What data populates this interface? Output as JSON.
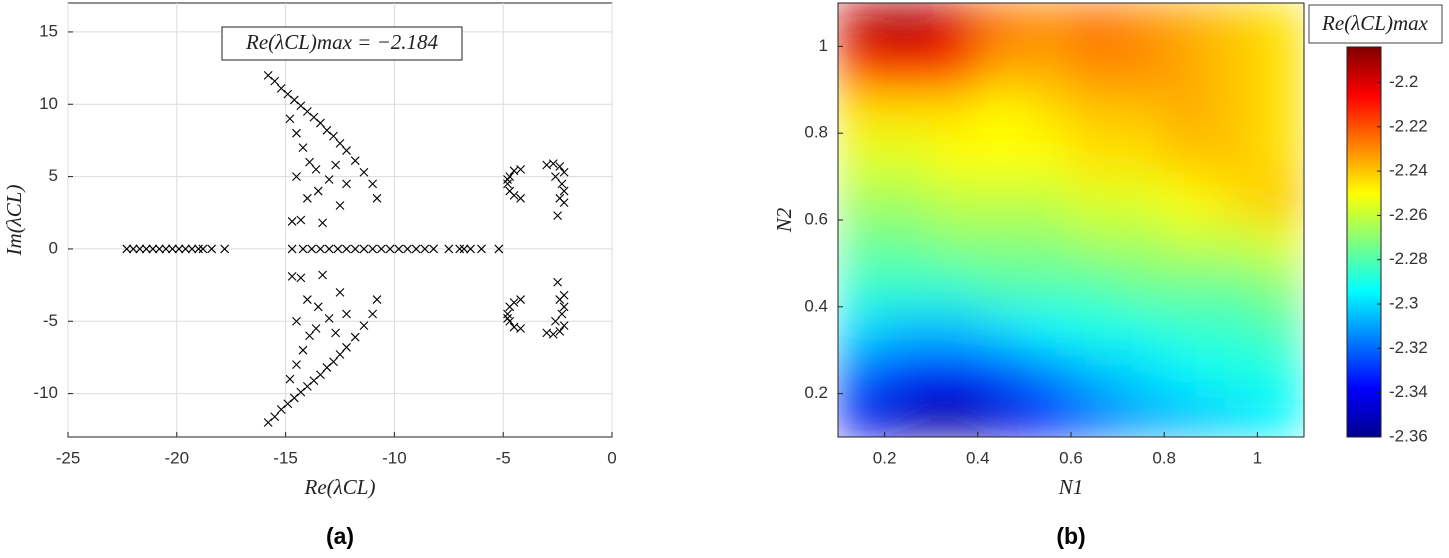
{
  "chart_data": [
    {
      "type": "scatter",
      "label": "(a)",
      "annotation": "Re(λCL)max = −2.184",
      "x_label": "Re(λCL)",
      "y_label": "Im(λCL)",
      "color": "#000000",
      "grid": true,
      "xlim": [
        -25,
        0
      ],
      "ylim": [
        -13,
        17
      ],
      "xticks": [
        -25,
        -20,
        -15,
        -10,
        -5,
        0
      ],
      "yticks": [
        -10,
        -5,
        0,
        5,
        10,
        15
      ],
      "x": [
        -22.3,
        -22,
        -21.7,
        -21.4,
        -21.1,
        -20.8,
        -20.5,
        -20.2,
        -19.9,
        -19.6,
        -19.3,
        -19,
        -18.8,
        -18.4,
        -17.8,
        -14.7,
        -14.2,
        -13.8,
        -13.4,
        -13,
        -12.6,
        -12.2,
        -11.8,
        -11.4,
        -11,
        -10.6,
        -10.2,
        -9.8,
        -9.4,
        -9,
        -8.6,
        -8.2,
        -7.5,
        -7,
        -6.8,
        -6.5,
        -6,
        -5.2,
        -15.8,
        -15.5,
        -15.2,
        -14.9,
        -14.6,
        -14.3,
        -14,
        -13.7,
        -13.4,
        -13.1,
        -12.8,
        -12.5,
        -12.2,
        -11.8,
        -11.4,
        -11,
        -10.8,
        -14.8,
        -14.5,
        -14.2,
        -14.5,
        -14.7,
        -13.9,
        -13.6,
        -13.5,
        -14,
        -13,
        -12.7,
        -12.2,
        -12.5,
        -14.3,
        -13.3,
        -4.8,
        -4.7,
        -4.5,
        -4.2,
        -4.7,
        -4.5,
        -4.2,
        -4.8,
        -3,
        -2.7,
        -2.4,
        -2.2,
        -2.3,
        -2.2,
        -2.4,
        -2.2,
        -2.6,
        -2.5,
        -15.8,
        -15.5,
        -15.2,
        -14.9,
        -14.6,
        -14.3,
        -14,
        -13.7,
        -13.4,
        -13.1,
        -12.8,
        -12.5,
        -12.2,
        -11.8,
        -11.4,
        -11,
        -10.8,
        -14.8,
        -14.5,
        -14.2,
        -14.5,
        -14.7,
        -13.9,
        -13.6,
        -13.5,
        -14,
        -13,
        -12.7,
        -12.2,
        -12.5,
        -14.3,
        -13.3,
        -4.8,
        -4.7,
        -4.5,
        -4.2,
        -4.7,
        -4.5,
        -4.2,
        -4.8,
        -3,
        -2.7,
        -2.4,
        -2.2,
        -2.3,
        -2.2,
        -2.4,
        -2.2,
        -2.6,
        -2.5
      ],
      "y": [
        0,
        0,
        0,
        0,
        0,
        0,
        0,
        0,
        0,
        0,
        0,
        0,
        0,
        0,
        0,
        0,
        0,
        0,
        0,
        0,
        0,
        0,
        0,
        0,
        0,
        0,
        0,
        0,
        0,
        0,
        0,
        0,
        0,
        0,
        0,
        0,
        0,
        0,
        12,
        11.6,
        11.1,
        10.7,
        10.3,
        9.9,
        9.5,
        9.1,
        8.7,
        8.2,
        7.8,
        7.3,
        6.8,
        6.1,
        5.3,
        4.5,
        3.5,
        9,
        8,
        7,
        5,
        1.9,
        6,
        5.5,
        4,
        3.5,
        4.8,
        5.8,
        4.5,
        3,
        2,
        1.8,
        4.5,
        5,
        5.4,
        5.5,
        4,
        3.7,
        3.5,
        4.8,
        5.8,
        5.9,
        5.7,
        5.3,
        4.5,
        4,
        3.5,
        3.2,
        5,
        2.3,
        -12,
        -11.6,
        -11.1,
        -10.7,
        -10.3,
        -9.9,
        -9.5,
        -9.1,
        -8.7,
        -8.2,
        -7.8,
        -7.3,
        -6.8,
        -6.1,
        -5.3,
        -4.5,
        -3.5,
        -9,
        -8,
        -7,
        -5,
        -1.9,
        -6,
        -5.5,
        -4,
        -3.5,
        -4.8,
        -5.8,
        -4.5,
        -3,
        -2,
        -1.8,
        -4.5,
        -5,
        -5.4,
        -5.5,
        -4,
        -3.7,
        -3.5,
        -4.8,
        -5.8,
        -5.9,
        -5.7,
        -5.3,
        -4.5,
        -4,
        -3.5,
        -3.2,
        -5,
        -2.3
      ]
    },
    {
      "type": "heatmap",
      "label": "(b)",
      "x_label": "N1",
      "y_label": "N2",
      "colormap": "jet",
      "grid": false,
      "xlim": [
        0.1,
        1.1
      ],
      "ylim": [
        0.1,
        1.1
      ],
      "xticks": [
        0.2,
        0.4,
        0.6,
        0.8,
        1
      ],
      "yticks": [
        0.2,
        0.4,
        0.6,
        0.8,
        1
      ],
      "x": [
        0.15,
        0.25,
        0.35,
        0.45,
        0.55,
        0.65,
        0.75,
        0.85,
        0.95,
        1.05
      ],
      "y": [
        0.15,
        0.25,
        0.35,
        0.45,
        0.55,
        0.65,
        0.75,
        0.85,
        0.95,
        1.05
      ],
      "z": [
        [
          -2.34,
          -2.35,
          -2.355,
          -2.345,
          -2.335,
          -2.32,
          -2.31,
          -2.305,
          -2.3,
          -2.295
        ],
        [
          -2.32,
          -2.33,
          -2.335,
          -2.325,
          -2.315,
          -2.305,
          -2.3,
          -2.295,
          -2.29,
          -2.29
        ],
        [
          -2.3,
          -2.305,
          -2.305,
          -2.3,
          -2.295,
          -2.29,
          -2.29,
          -2.285,
          -2.285,
          -2.28
        ],
        [
          -2.285,
          -2.285,
          -2.285,
          -2.28,
          -2.28,
          -2.28,
          -2.275,
          -2.275,
          -2.275,
          -2.27
        ],
        [
          -2.275,
          -2.275,
          -2.27,
          -2.27,
          -2.27,
          -2.265,
          -2.265,
          -2.26,
          -2.26,
          -2.255
        ],
        [
          -2.265,
          -2.265,
          -2.26,
          -2.26,
          -2.26,
          -2.255,
          -2.255,
          -2.25,
          -2.245,
          -2.24
        ],
        [
          -2.255,
          -2.255,
          -2.25,
          -2.25,
          -2.25,
          -2.245,
          -2.245,
          -2.24,
          -2.24,
          -2.245
        ],
        [
          -2.245,
          -2.245,
          -2.245,
          -2.25,
          -2.245,
          -2.24,
          -2.24,
          -2.235,
          -2.24,
          -2.245
        ],
        [
          -2.215,
          -2.21,
          -2.215,
          -2.235,
          -2.235,
          -2.23,
          -2.23,
          -2.235,
          -2.24,
          -2.245
        ],
        [
          -2.195,
          -2.19,
          -2.2,
          -2.225,
          -2.23,
          -2.225,
          -2.23,
          -2.235,
          -2.24,
          -2.245
        ]
      ],
      "colorbar": {
        "label": "Re(λCL)max",
        "lim": [
          -2.36,
          -2.184
        ],
        "ticks": [
          -2.36,
          -2.34,
          -2.32,
          -2.3,
          -2.28,
          -2.26,
          -2.24,
          -2.22,
          -2.2
        ]
      }
    }
  ]
}
